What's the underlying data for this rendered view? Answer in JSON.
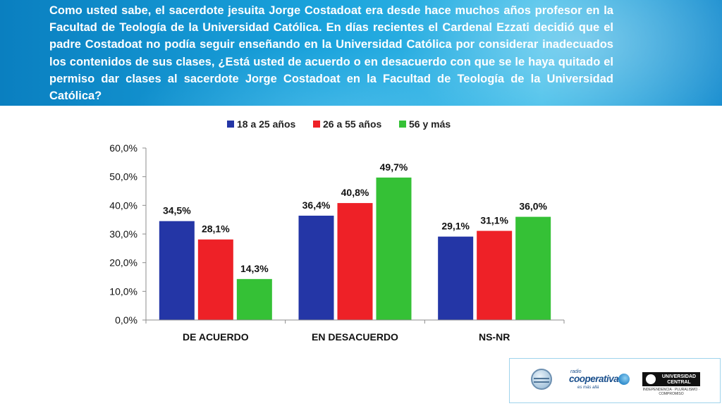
{
  "header": {
    "question": "Como usted sabe, el sacerdote jesuita Jorge Costadoat era desde hace muchos años profesor en la Facultad de Teología de la Universidad Católica. En días recientes el Cardenal Ezzati decidió que el padre Costadoat no podía seguir enseñando en la Universidad Católica por considerar inadecuados los contenidos de sus clases, ¿Está usted de acuerdo o en desacuerdo con que se le haya quitado el permiso dar clases al sacerdote Jorge Costadoat en la Facultad de Teología de la Universidad Católica?"
  },
  "chart_data": {
    "type": "bar",
    "categories": [
      "DE ACUERDO",
      "EN DESACUERDO",
      "NS-NR"
    ],
    "series": [
      {
        "name": "18 a 25 años",
        "color": "#2436a6",
        "values": [
          34.5,
          36.4,
          29.1
        ],
        "labels": [
          "34,5%",
          "36,4%",
          "29,1%"
        ]
      },
      {
        "name": "26 a 55 años",
        "color": "#ee2127",
        "values": [
          28.1,
          40.8,
          31.1
        ],
        "labels": [
          "28,1%",
          "40,8%",
          "31,1%"
        ]
      },
      {
        "name": "56 y más",
        "color": "#35c136",
        "values": [
          14.3,
          49.7,
          36.0
        ],
        "labels": [
          "14,3%",
          "49,7%",
          "36,0%"
        ]
      }
    ],
    "ylim": [
      0,
      60
    ],
    "yticks": [
      0,
      10,
      20,
      30,
      40,
      50,
      60
    ],
    "ytick_labels": [
      "0,0%",
      "10,0%",
      "20,0%",
      "30,0%",
      "40,0%",
      "50,0%",
      "60,0%"
    ],
    "legend_position": "top",
    "grid": false
  },
  "footer": {
    "radio_small": "radio",
    "radio_name": "cooperativa",
    "radio_tagline": "es más allá",
    "university_name": "UNIVERSIDAD CENTRAL",
    "university_motto": "INDEPENDENCIA · PLURALISMO · COMPROMISO"
  }
}
